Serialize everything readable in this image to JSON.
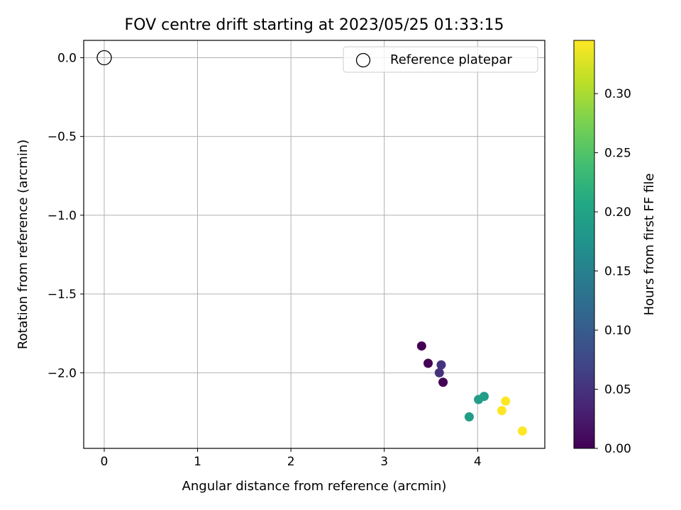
{
  "chart_data": {
    "type": "scatter",
    "title": "FOV centre drift starting at 2023/05/25 01:33:15",
    "xlabel": "Angular distance from reference (arcmin)",
    "ylabel": "Rotation from reference (arcmin)",
    "xlim": [
      -0.22,
      4.72
    ],
    "ylim": [
      -2.48,
      0.11
    ],
    "x_ticks": [
      0,
      1,
      2,
      3,
      4
    ],
    "x_tick_labels": [
      "0",
      "1",
      "2",
      "3",
      "4"
    ],
    "y_ticks": [
      0.0,
      -0.5,
      -1.0,
      -1.5,
      -2.0
    ],
    "y_tick_labels": [
      "0.0",
      "−0.5",
      "−1.0",
      "−1.5",
      "−2.0"
    ],
    "grid": true,
    "legend": {
      "placement": "top-right",
      "entries": [
        "Reference platepar"
      ]
    },
    "reference_point": {
      "x": 0.0,
      "y": 0.0,
      "label": "Reference platepar"
    },
    "points": [
      {
        "x": 3.4,
        "y": -1.83,
        "hours": 0.0
      },
      {
        "x": 3.47,
        "y": -1.94,
        "hours": 0.0
      },
      {
        "x": 3.63,
        "y": -2.06,
        "hours": 0.0
      },
      {
        "x": 3.59,
        "y": -2.0,
        "hours": 0.05
      },
      {
        "x": 3.61,
        "y": -1.95,
        "hours": 0.05
      },
      {
        "x": 3.91,
        "y": -2.28,
        "hours": 0.19
      },
      {
        "x": 4.01,
        "y": -2.17,
        "hours": 0.19
      },
      {
        "x": 4.07,
        "y": -2.15,
        "hours": 0.19
      },
      {
        "x": 4.26,
        "y": -2.24,
        "hours": 0.345
      },
      {
        "x": 4.3,
        "y": -2.18,
        "hours": 0.345
      },
      {
        "x": 4.48,
        "y": -2.37,
        "hours": 0.345
      }
    ],
    "colorbar": {
      "label": "Hours from first FF file",
      "colormap": "viridis",
      "range": [
        0.0,
        0.345
      ],
      "ticks": [
        0.0,
        0.05,
        0.1,
        0.15,
        0.2,
        0.25,
        0.3
      ],
      "tick_labels": [
        "0.00",
        "0.05",
        "0.10",
        "0.15",
        "0.20",
        "0.25",
        "0.30"
      ]
    }
  }
}
